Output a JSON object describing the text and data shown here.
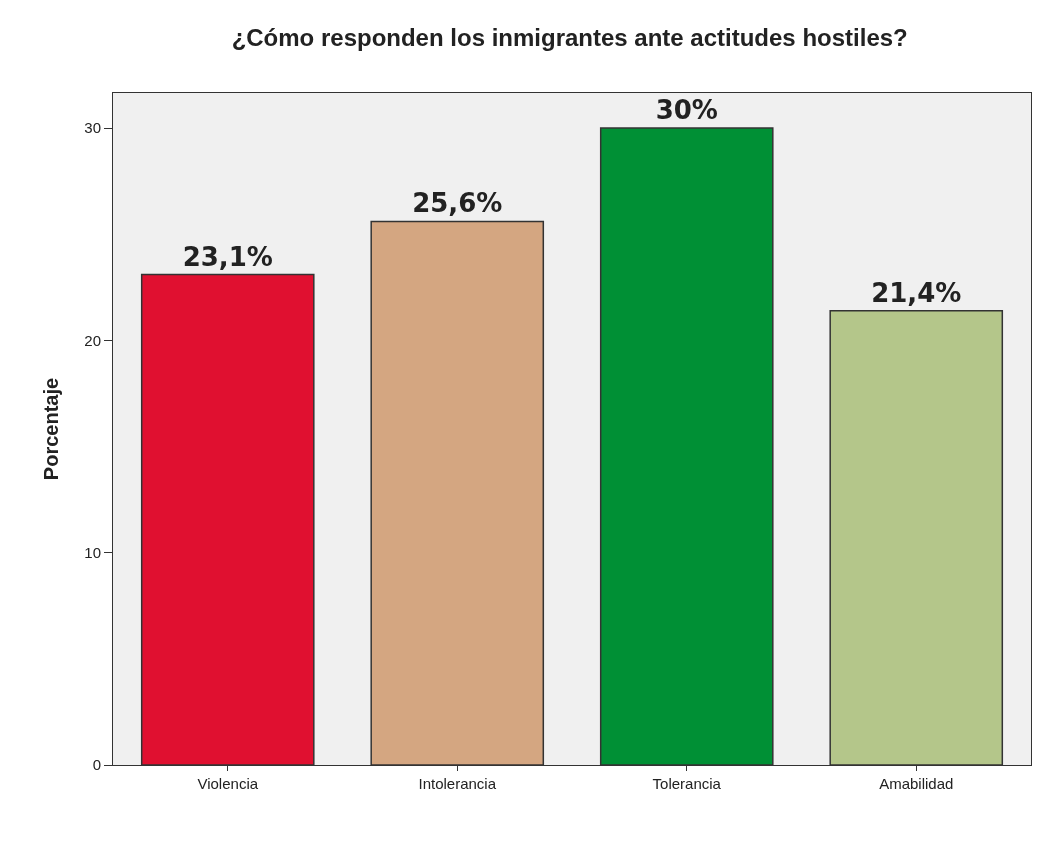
{
  "chart_data": {
    "type": "bar",
    "title": "¿Cómo responden los inmigrantes ante actitudes hostiles?",
    "ylabel": "Porcentaje",
    "categories": [
      "Violencia",
      "Intolerancia",
      "Tolerancia",
      "Amabilidad"
    ],
    "values": [
      23.1,
      25.6,
      30,
      21.4
    ],
    "colors": [
      "#e01030",
      "#d4a681",
      "#009035",
      "#b4c68a"
    ],
    "value_labels": [
      "23,1%",
      "25,6%",
      "30%",
      "21,4%"
    ],
    "ylim": [
      0,
      31.65
    ],
    "yticks": [
      0,
      10,
      20,
      30
    ]
  }
}
